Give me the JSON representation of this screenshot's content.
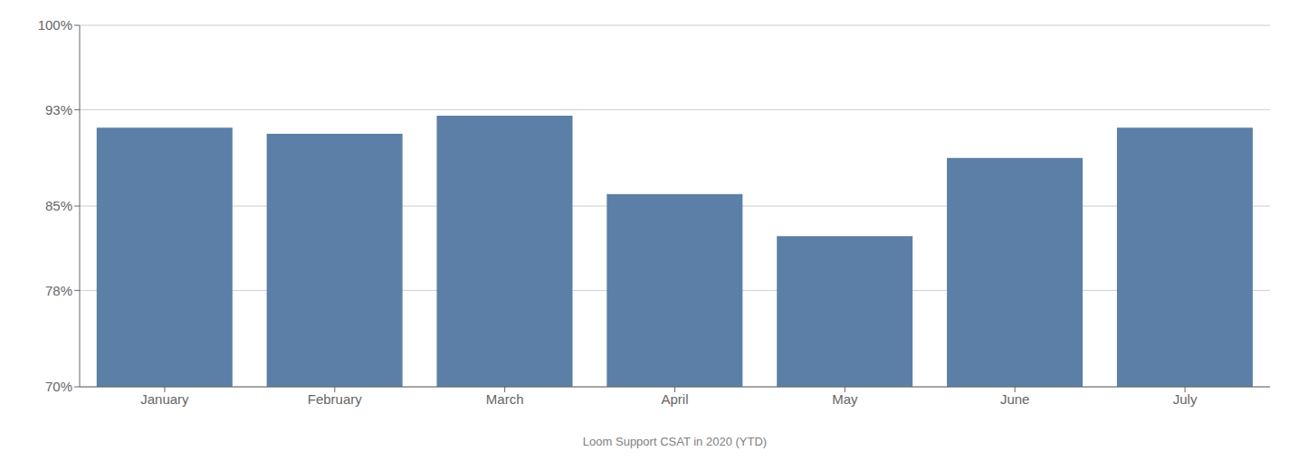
{
  "chart_data": {
    "type": "bar",
    "xlabel": "Loom Support CSAT in 2020 (YTD)",
    "categories": [
      "January",
      "February",
      "March",
      "April",
      "May",
      "June",
      "July"
    ],
    "values": [
      0.915,
      0.91,
      0.925,
      0.86,
      0.825,
      0.89,
      0.915
    ],
    "color": "#5b7fa6",
    "ylim": [
      0.7,
      1.0
    ],
    "yticks": [
      {
        "value": 1.0,
        "label": "100%"
      },
      {
        "value": 0.93,
        "label": "93%"
      },
      {
        "value": 0.85,
        "label": "85%"
      },
      {
        "value": 0.78,
        "label": "78%"
      },
      {
        "value": 0.7,
        "label": "70%"
      }
    ],
    "grid": true
  }
}
